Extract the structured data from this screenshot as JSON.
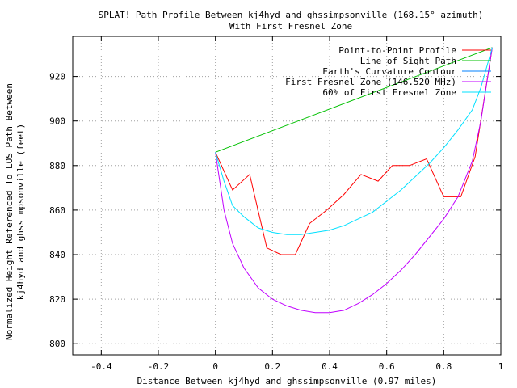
{
  "chart_data": {
    "type": "line",
    "title": "SPLAT! Path Profile Between kj4hyd and ghssimpsonville (168.15° azimuth)",
    "subtitle": "With First Fresnel Zone",
    "xlabel": "Distance Between kj4hyd and ghssimpsonville (0.97 miles)",
    "ylabel_line1": "Normalized Height Referenced To LOS Path Between",
    "ylabel_line2": "kj4hyd and ghssimpsonville (feet)",
    "xlim": [
      -0.5,
      1.0
    ],
    "ylim": [
      795,
      938
    ],
    "x_ticks": [
      -0.4,
      -0.2,
      0,
      0.2,
      0.4,
      0.6,
      0.8,
      1
    ],
    "x_tick_labels": [
      "-0.4",
      "-0.2",
      "0",
      "0.2",
      "0.4",
      "0.6",
      "0.8",
      "1"
    ],
    "y_ticks": [
      800,
      820,
      840,
      860,
      880,
      900,
      920
    ],
    "y_tick_labels": [
      "800",
      "820",
      "840",
      "860",
      "880",
      "900",
      "920"
    ],
    "grid": true,
    "legend_position": "top-right",
    "series": [
      {
        "name": "Point-to-Point Profile",
        "color": "#ff0000",
        "points": [
          [
            0.0,
            886
          ],
          [
            0.06,
            869
          ],
          [
            0.12,
            876
          ],
          [
            0.18,
            843
          ],
          [
            0.23,
            840
          ],
          [
            0.28,
            840
          ],
          [
            0.33,
            854
          ],
          [
            0.39,
            860
          ],
          [
            0.45,
            867
          ],
          [
            0.51,
            876
          ],
          [
            0.57,
            873
          ],
          [
            0.62,
            880
          ],
          [
            0.68,
            880
          ],
          [
            0.74,
            883
          ],
          [
            0.8,
            866
          ],
          [
            0.86,
            866
          ],
          [
            0.91,
            884
          ],
          [
            0.97,
            933
          ]
        ]
      },
      {
        "name": "Line of Sight Path",
        "color": "#00c000",
        "points": [
          [
            0.0,
            886
          ],
          [
            0.97,
            933
          ]
        ]
      },
      {
        "name": "Earth's Curvature Contour",
        "color": "#0080ff",
        "points": [
          [
            0.0,
            834
          ],
          [
            0.2,
            834
          ],
          [
            0.6,
            834
          ],
          [
            0.91,
            834
          ]
        ]
      },
      {
        "name": "First Fresnel Zone (146.520 MHz)",
        "color": "#c000ff",
        "points": [
          [
            0.0,
            886
          ],
          [
            0.03,
            860
          ],
          [
            0.06,
            845
          ],
          [
            0.1,
            834
          ],
          [
            0.15,
            825
          ],
          [
            0.2,
            820
          ],
          [
            0.25,
            817
          ],
          [
            0.3,
            815
          ],
          [
            0.35,
            814
          ],
          [
            0.4,
            814
          ],
          [
            0.45,
            815
          ],
          [
            0.5,
            818
          ],
          [
            0.55,
            822
          ],
          [
            0.6,
            827
          ],
          [
            0.65,
            833
          ],
          [
            0.7,
            840
          ],
          [
            0.75,
            848
          ],
          [
            0.8,
            856
          ],
          [
            0.85,
            866
          ],
          [
            0.9,
            882
          ],
          [
            0.93,
            900
          ],
          [
            0.97,
            933
          ]
        ]
      },
      {
        "name": "60% of First Fresnel Zone",
        "color": "#00e0ff",
        "points": [
          [
            0.0,
            886
          ],
          [
            0.03,
            873
          ],
          [
            0.06,
            862
          ],
          [
            0.1,
            857
          ],
          [
            0.15,
            852
          ],
          [
            0.2,
            850
          ],
          [
            0.25,
            849
          ],
          [
            0.3,
            849
          ],
          [
            0.35,
            850
          ],
          [
            0.4,
            851
          ],
          [
            0.45,
            853
          ],
          [
            0.5,
            856
          ],
          [
            0.55,
            859
          ],
          [
            0.6,
            864
          ],
          [
            0.65,
            869
          ],
          [
            0.7,
            875
          ],
          [
            0.75,
            881
          ],
          [
            0.8,
            888
          ],
          [
            0.85,
            896
          ],
          [
            0.9,
            905
          ],
          [
            0.93,
            915
          ],
          [
            0.97,
            933
          ]
        ]
      }
    ]
  }
}
